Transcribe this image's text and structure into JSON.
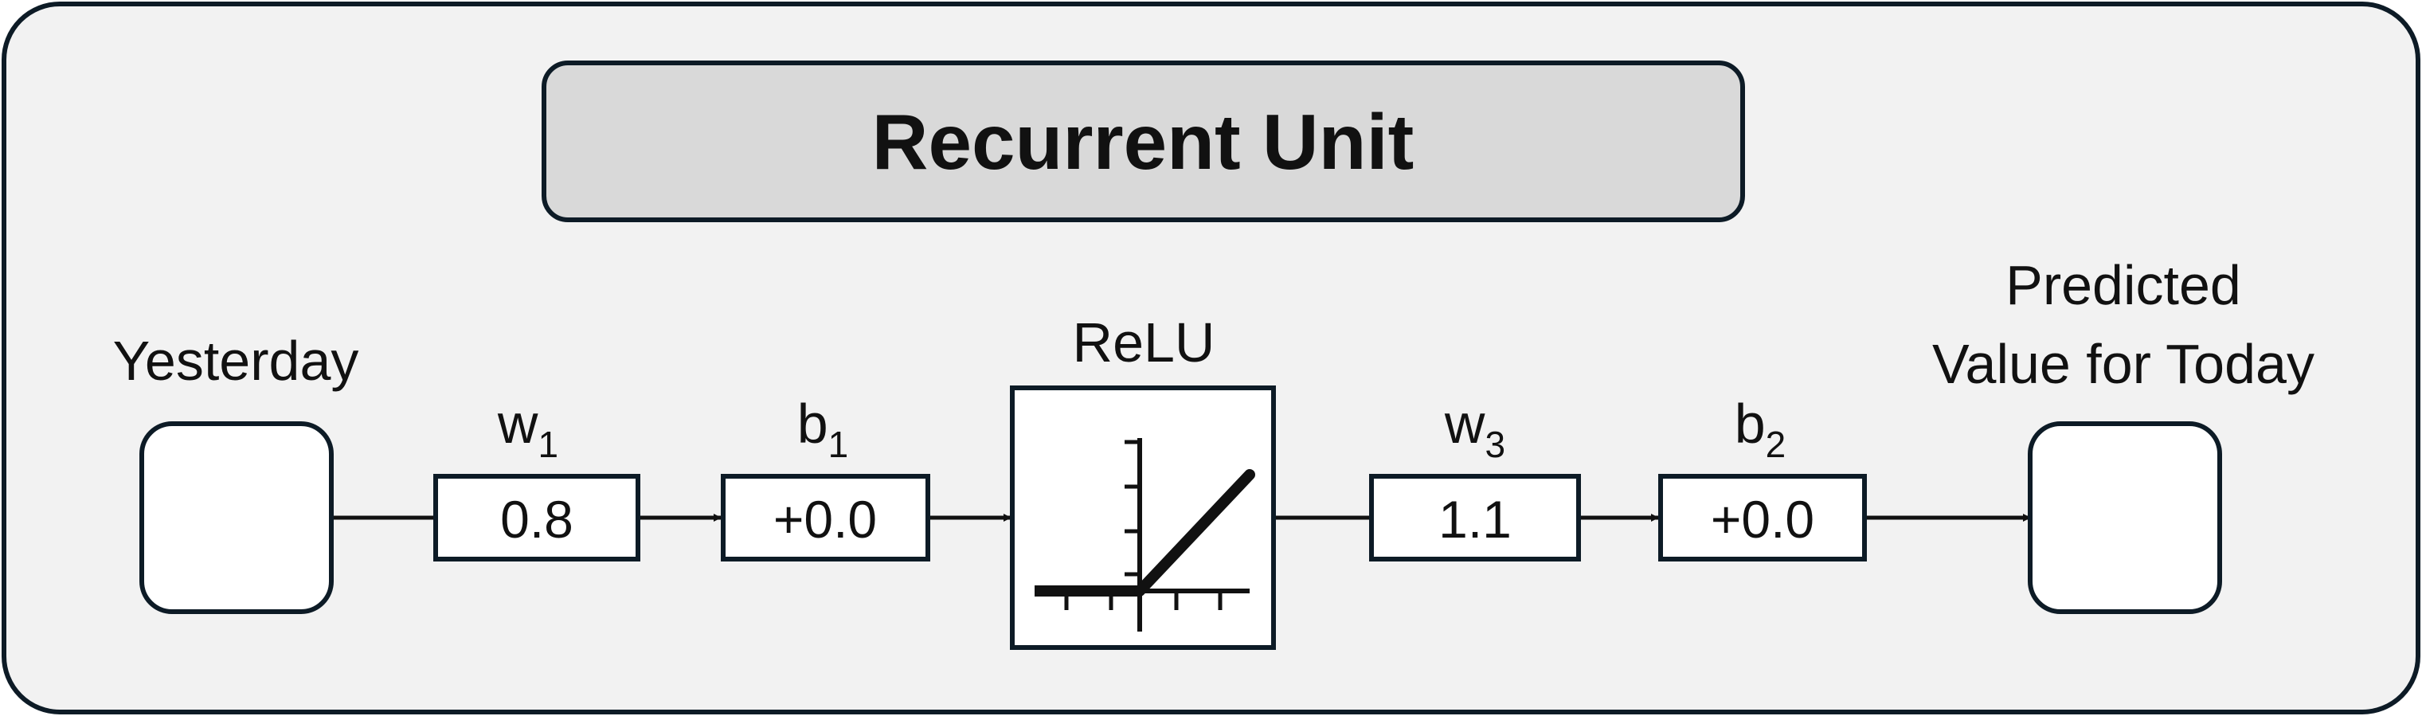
{
  "title": "Recurrent Unit",
  "input_label": "Yesterday",
  "output_label": {
    "line1": "Predicted",
    "line2": "Value for Today"
  },
  "activation_label": "ReLU",
  "params": {
    "w1": {
      "letter": "w",
      "sub": "1",
      "value": "0.8"
    },
    "b1": {
      "letter": "b",
      "sub": "1",
      "value": "+0.0"
    },
    "w3": {
      "letter": "w",
      "sub": "3",
      "value": "1.1"
    },
    "b2": {
      "letter": "b",
      "sub": "2",
      "value": "+0.0"
    }
  },
  "colors": {
    "background": "#f2f2f2",
    "title_fill": "#d9d9d9",
    "stroke": "#0d1b26",
    "box_fill": "#ffffff"
  }
}
